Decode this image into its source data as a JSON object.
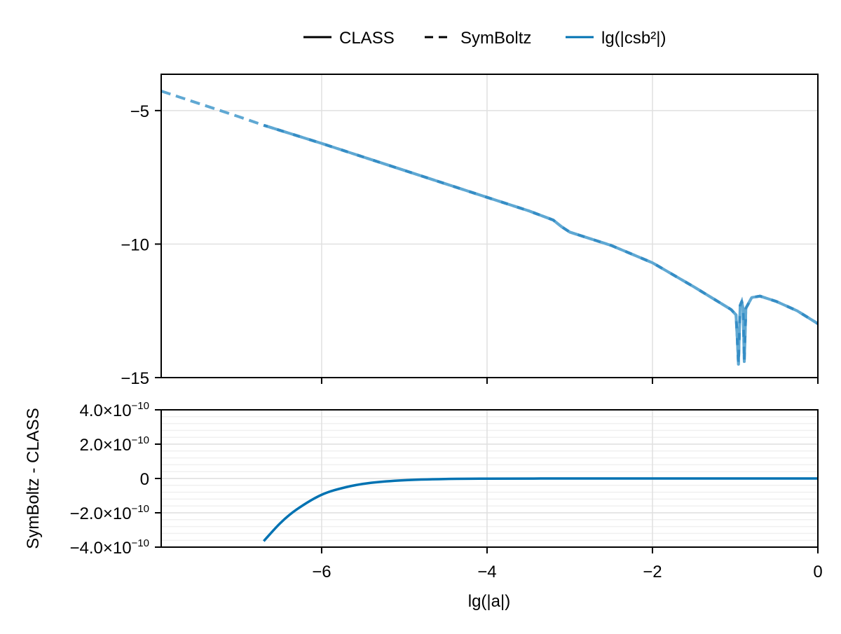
{
  "legend": {
    "items": [
      {
        "label": "CLASS",
        "style": "solid",
        "color": "#000000"
      },
      {
        "label": "SymBoltz",
        "style": "dashed",
        "color": "#000000"
      },
      {
        "label": "lg(|csb²|)",
        "style": "solid",
        "color": "#0072b2"
      }
    ]
  },
  "colors": {
    "series": "#0072b2",
    "series_light": "#5fa8d3",
    "grid": "#e0e0e0",
    "minor_grid": "#f0f0f0",
    "axis": "#000000"
  },
  "chart_data": [
    {
      "type": "line",
      "panel": "top",
      "title": "",
      "xlabel": "",
      "ylabel": "",
      "xlim": [
        -7.94,
        0
      ],
      "ylim": [
        -15,
        -3.64
      ],
      "grid": true,
      "legend_position": "top (outside)",
      "xticks": [
        -6,
        -4,
        -2,
        0
      ],
      "yticks": [
        -5,
        -10,
        -15
      ],
      "ytick_labels": [
        "−5",
        "−10",
        "−15"
      ],
      "series": [
        {
          "name": "CLASS",
          "style": "solid",
          "x": [
            -6.7,
            -6,
            -5,
            -4,
            -3.5,
            -3.2,
            -3.1,
            -3.0,
            -2.5,
            -2,
            -1.5,
            -1.05,
            -0.99,
            -0.975,
            -0.96,
            -0.94,
            -0.92,
            -0.905,
            -0.89,
            -0.87,
            -0.8,
            -0.7,
            -0.5,
            -0.25,
            0
          ],
          "y": [
            -5.55,
            -6.23,
            -7.24,
            -8.25,
            -8.75,
            -9.1,
            -9.35,
            -9.55,
            -10.05,
            -10.7,
            -11.6,
            -12.45,
            -12.65,
            -13.5,
            -14.5,
            -12.3,
            -12.15,
            -12.4,
            -14.4,
            -12.4,
            -12.0,
            -11.95,
            -12.15,
            -12.5,
            -12.98
          ]
        },
        {
          "name": "SymBoltz",
          "style": "dashed",
          "x": [
            -7.94,
            -7,
            -6.7,
            -6,
            -5,
            -4,
            -3.5,
            -3.2,
            -3.1,
            -3.0,
            -2.5,
            -2,
            -1.5,
            -1.05,
            -0.99,
            -0.975,
            -0.96,
            -0.94,
            -0.92,
            -0.905,
            -0.89,
            -0.87,
            -0.8,
            -0.7,
            -0.5,
            -0.25,
            0
          ],
          "y": [
            -4.27,
            -5.23,
            -5.55,
            -6.23,
            -7.24,
            -8.25,
            -8.75,
            -9.1,
            -9.35,
            -9.55,
            -10.05,
            -10.7,
            -11.6,
            -12.45,
            -12.65,
            -13.5,
            -14.5,
            -12.3,
            -12.15,
            -12.4,
            -14.4,
            -12.4,
            -12.0,
            -11.95,
            -12.15,
            -12.5,
            -12.98
          ]
        }
      ]
    },
    {
      "type": "line",
      "panel": "bottom",
      "title": "",
      "xlabel": "lg(|a|)",
      "ylabel": "SymBoltz - CLASS",
      "xlim": [
        -7.94,
        0
      ],
      "ylim": [
        -4e-10,
        4e-10
      ],
      "grid": true,
      "minor_grid": true,
      "xticks": [
        -6,
        -4,
        -2,
        0
      ],
      "xtick_labels": [
        "−6",
        "−4",
        "−2",
        "0"
      ],
      "yticks": [
        4e-10,
        2e-10,
        0,
        -2e-10,
        -4e-10
      ],
      "ytick_labels": [
        {
          "mantissa": "4.0×10",
          "exp": "−10"
        },
        {
          "mantissa": "2.0×10",
          "exp": "−10"
        },
        {
          "mantissa": "0",
          "exp": ""
        },
        {
          "mantissa": "−2.0×10",
          "exp": "−10"
        },
        {
          "mantissa": "−4.0×10",
          "exp": "−10"
        }
      ],
      "series": [
        {
          "name": "lg(|csb²|)",
          "style": "solid",
          "x": [
            -6.7,
            -6.5,
            -6.3,
            -6.0,
            -5.7,
            -5.4,
            -5.0,
            -4.5,
            -4.0,
            -3.0,
            -2.0,
            -1.0,
            0
          ],
          "y": [
            -3.65e-10,
            -2.6e-10,
            -1.8e-10,
            -9.5e-11,
            -5e-11,
            -2.5e-11,
            -1e-11,
            -3e-12,
            -1e-12,
            0,
            0,
            0,
            0
          ]
        }
      ]
    }
  ]
}
